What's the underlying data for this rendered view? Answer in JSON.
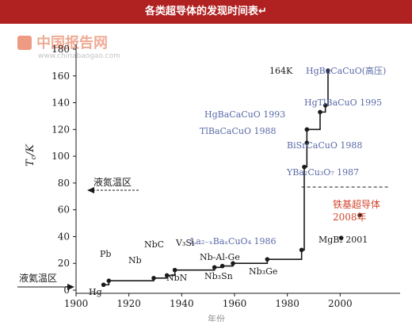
{
  "header": {
    "title": "各类超导体的发现时间表↵"
  },
  "watermark": {
    "brand": "中国报告网",
    "domain": "www.chinabaogao.com"
  },
  "colors": {
    "banner": "#b02121",
    "label_blue": "#5a6aa8",
    "label_red": "#d0452c",
    "ink": "#1a1a1a"
  },
  "chart_data": {
    "type": "line",
    "title": "",
    "xlabel": "年份",
    "ylabel": "Tc/K",
    "xlim": [
      1900,
      2020
    ],
    "ylim": [
      -5,
      180
    ],
    "xticks": [
      "1900",
      "1920",
      "1940",
      "1960",
      "1980",
      "2000"
    ],
    "yticks": [
      "0",
      "20",
      "40",
      "60",
      "80",
      "100",
      "120",
      "140",
      "160",
      "180"
    ],
    "series": [
      {
        "name": "",
        "x": [
          1911,
          1913,
          1930,
          1935,
          1938,
          1953,
          1956,
          1960,
          1973,
          1986,
          1987,
          1988,
          1988,
          1993,
          1995,
          1996
        ],
        "y": [
          4,
          7,
          9,
          11,
          15,
          17,
          18,
          20,
          23,
          30,
          92,
          110,
          120,
          133,
          138,
          164
        ]
      }
    ],
    "outliers": [
      {
        "x": 2001,
        "y": 39
      },
      {
        "x": 2008,
        "y": 56
      }
    ],
    "nitrogen_line": {
      "y": 77
    },
    "labels": [
      {
        "text": "Hg"
      },
      {
        "text": "Pb"
      },
      {
        "text": "Nb"
      },
      {
        "text": "NbC"
      },
      {
        "text": "NbN"
      },
      {
        "text": "V₃Si"
      },
      {
        "text": "Nb₃Sn"
      },
      {
        "text": "Nb-Al-Ge"
      },
      {
        "text": "Nb₃Ge"
      },
      {
        "text": "La₂₋ₓBaₓCuO₄ 1986"
      },
      {
        "text": "YBa₂Cu₃O₇ 1987"
      },
      {
        "text": "BiSrCaCuO 1988"
      },
      {
        "text": "TlBaCaCuO 1988"
      },
      {
        "text": "HgBaCaCuO 1993"
      },
      {
        "text": "HgTlBaCuO 1995"
      },
      {
        "text": "164K"
      },
      {
        "text": "HgBaCaCuO(高压)"
      },
      {
        "text": "MgB₂ 2001"
      },
      {
        "text": "铁基超导体"
      },
      {
        "text": "2008年"
      }
    ],
    "annotations": [
      {
        "text": "液氮温区"
      },
      {
        "text": "液氦温区"
      }
    ]
  }
}
